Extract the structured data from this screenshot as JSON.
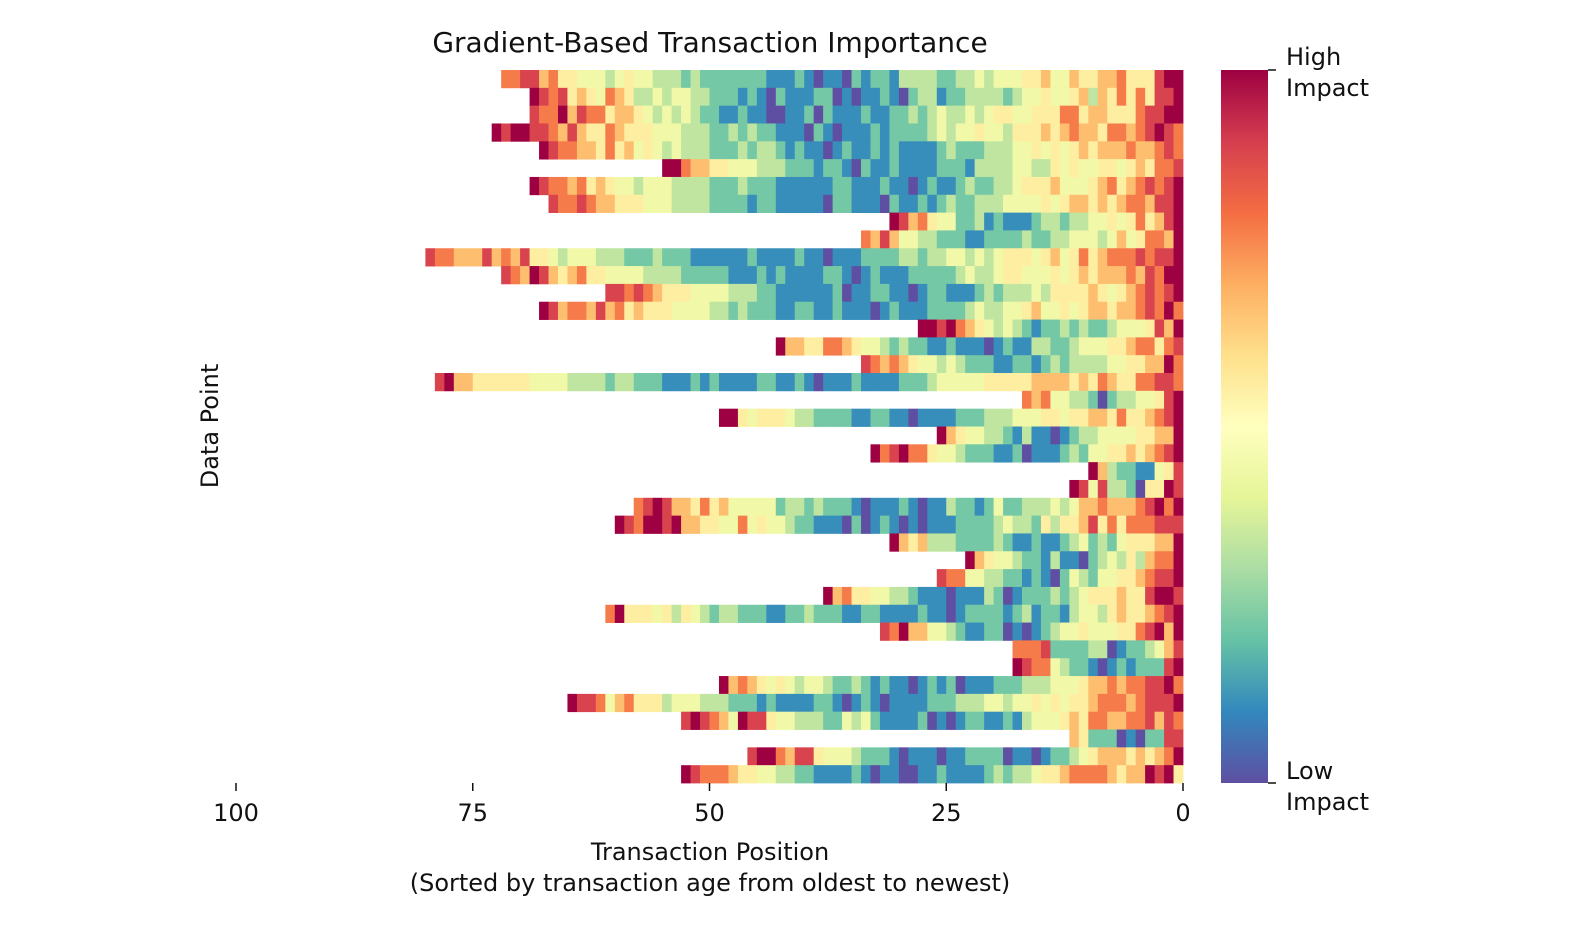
{
  "chart_data": {
    "type": "heatmap",
    "title": "Gradient-Based Transaction Importance",
    "xlabel": "Transaction Position",
    "xlabel_sub": "(Sorted by transaction age from oldest to newest)",
    "ylabel": "Data Point",
    "xlim": [
      100,
      0
    ],
    "x_ticks": [
      "100",
      "75",
      "50",
      "25",
      "0"
    ],
    "x_tick_values": [
      100,
      75,
      50,
      25,
      0
    ],
    "colormap": [
      "#5e4fa2",
      "#3288bd",
      "#66c2a5",
      "#abdda4",
      "#e6f598",
      "#ffffbf",
      "#fee08b",
      "#fdae61",
      "#f46d43",
      "#d53e4f",
      "#9e0142"
    ],
    "value_scale": "0 = low impact, 9 = high impact; each row string runs from oldest transaction to newest (position 0)",
    "colorbar": {
      "high_label": "High Impact",
      "low_label": "Low Impact"
    },
    "rows": [
      "778867554443454433323222222211121011021221333322334344455644655667555899",
      "987856547653343443322212102111220101121023312233332344544563657575889",
      "877968775665434343221121100112021112112232343343455445557756655578899",
      "9899887686557655544433322323221110210111212222343445443555656766577678987",
      "98776657564543433322232332121101211212111123222333445454565666766787",
      "9976655444333222122102112111122213333443354544554565778",
      "987767565443444333322232221111112211121101211232233455564445675678789",
      "8778766555444333322221221111102211102112123223334444545665656776889",
      "9867544223121112332334454575689",
      "7686443322211222232233444346457769",
      "87766686768554344433322232221111112111121101112222332334434345554564575677787889",
      "876986567554444333322222111212111122101211122222343345544454565666768799",
      "8878765554444333221111112011221101221112323334355556545678789",
      "98677686756555444433232221122112111012111222234334456445456656678797",
      "9989765434321223232234445869",
      "9665577654432322112111012113322344455677578",
      "8767654434322211221232333344556697",
      "8966555555444433332332221112121111221121011121111222344444555556666565765577887",
      "76744332023344589",
      "9954555433222211221101111222333444554556657556789",
      "96544332131101233444455669",
      "978977544322211201112324455656789",
      "9632211458",
      "984833205598",
      "7898665756444442332322210111210113221242233343466766678979",
      "987998966554474544322111020121010111222234332535568575777888",
      "9656333222232112112342324555669",
      "96544322131102343536779",
      "87744332212102432445567889",
      "96755443321110111320122232345556558998",
      "7955545354323322211223222112211112110122221231221344356556789",
      "87966443211220101234454445578969",
      "777822223301223468",
      "987743221012122289",
      "9676545434432232121101212011122233344456676778897",
      "98874675553444333222121111221012101111222333443445454556777678889",
      "89876498854433322434211112010122112134445657766778687",
      "652220102288",
      "8997688544432221011101122220110122345666565679",
      "98777655443322111121011001121111232334556777765669895"
    ]
  }
}
